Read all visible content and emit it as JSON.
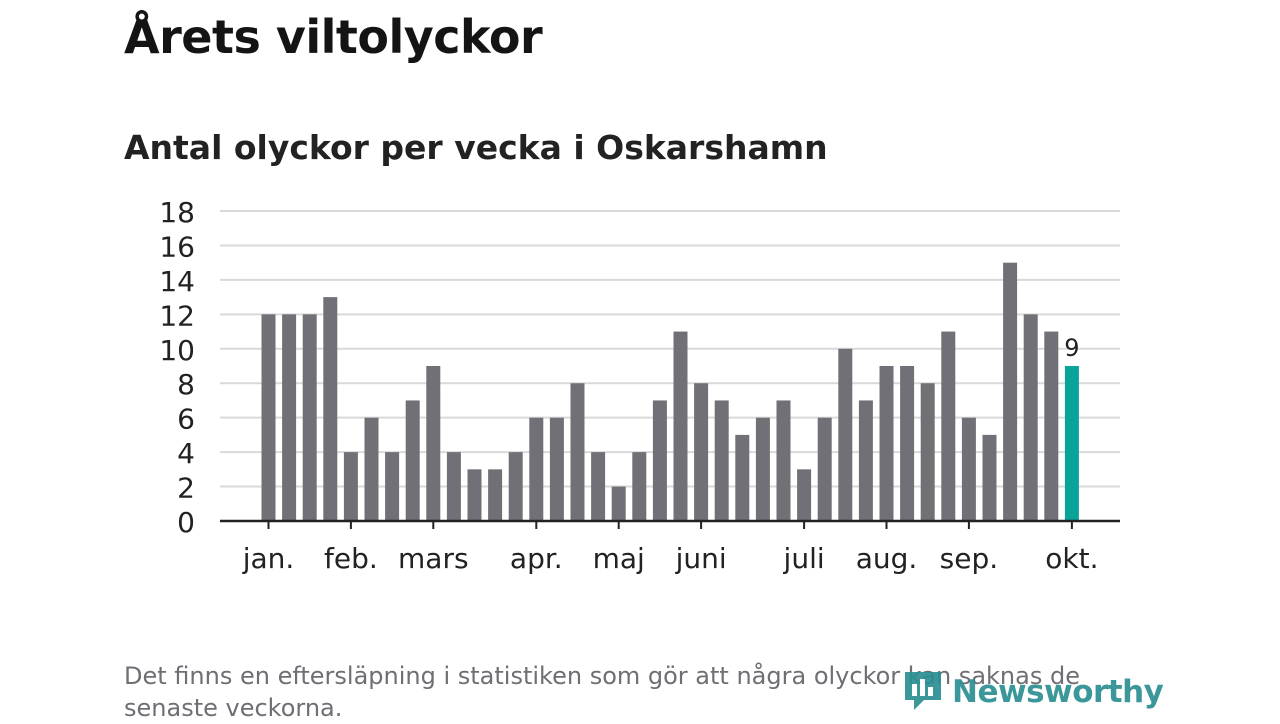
{
  "title": "Årets viltolyckor",
  "subtitle": "Antal olyckor per vecka i Oskarshamn",
  "footnote": "Det finns en eftersläpning i statistiken som gör att några olyckor kan saknas de senaste veckorna.",
  "brand": {
    "name": "Newsworthy",
    "icon": "newsworthy-logo-icon",
    "color": "#2c8f93"
  },
  "colors": {
    "bar": "#727077",
    "highlight": "#0aa39a",
    "grid": "#d9d9d9",
    "axis": "#222222"
  },
  "chart_data": {
    "type": "bar",
    "title": "Antal olyckor per vecka i Oskarshamn",
    "xlabel": "",
    "ylabel": "",
    "ylim": [
      0,
      18
    ],
    "yticks": [
      0,
      2,
      4,
      6,
      8,
      10,
      12,
      14,
      16,
      18
    ],
    "grid": true,
    "values": [
      12,
      12,
      12,
      13,
      4,
      6,
      4,
      7,
      9,
      4,
      3,
      3,
      4,
      6,
      6,
      8,
      4,
      2,
      4,
      7,
      11,
      8,
      7,
      5,
      6,
      7,
      3,
      6,
      10,
      7,
      9,
      9,
      8,
      11,
      6,
      5,
      15,
      12,
      11,
      9
    ],
    "highlight_index": 39,
    "highlight_label": "9",
    "month_labels": [
      {
        "label": "jan.",
        "week": 0
      },
      {
        "label": "feb.",
        "week": 4
      },
      {
        "label": "mars",
        "week": 8
      },
      {
        "label": "apr.",
        "week": 13
      },
      {
        "label": "maj",
        "week": 17
      },
      {
        "label": "juni",
        "week": 21
      },
      {
        "label": "juli",
        "week": 26
      },
      {
        "label": "aug.",
        "week": 30
      },
      {
        "label": "sep.",
        "week": 34
      },
      {
        "label": "okt.",
        "week": 39
      }
    ]
  }
}
